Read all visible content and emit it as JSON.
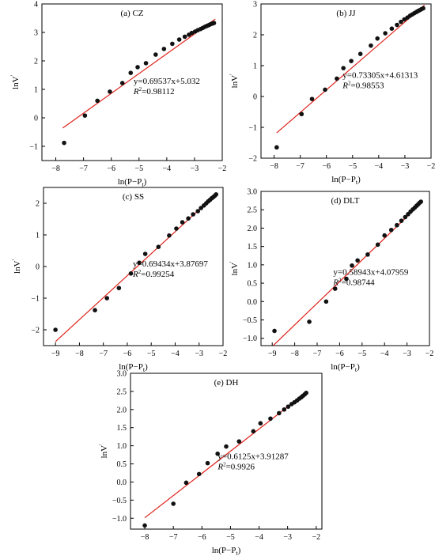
{
  "chart_data": [
    {
      "type": "scatter",
      "panel_label": "(a) CZ",
      "xlabel": "ln(P−P",
      "xlabel_sub": "t",
      "ylabel": "lnV",
      "ylabel_sup": "'",
      "xlim": [
        -8.5,
        -2
      ],
      "ylim": [
        -1.5,
        4
      ],
      "xticks": [
        -8,
        -7,
        -6,
        -5,
        -4,
        -3,
        -2
      ],
      "yticks": [
        -1,
        0,
        1,
        2,
        3,
        4
      ],
      "equation": "y=0.69537x+5.032",
      "r2_label": "R",
      "r2_value": "=0.98112",
      "fit": {
        "slope": 0.69537,
        "intercept": 5.032,
        "x_range": [
          -7.75,
          -2.25
        ]
      },
      "series": [
        {
          "x": [
            -7.7,
            -6.95,
            -6.5,
            -6.05,
            -5.6,
            -5.3,
            -5.05,
            -4.75,
            -4.4,
            -4.1,
            -3.8,
            -3.55,
            -3.35,
            -3.2,
            -3.1,
            -2.98,
            -2.88,
            -2.78,
            -2.7,
            -2.62,
            -2.55,
            -2.48,
            -2.42,
            -2.36,
            -2.3
          ],
          "y": [
            -0.88,
            0.08,
            0.6,
            0.92,
            1.22,
            1.58,
            1.78,
            1.92,
            2.22,
            2.42,
            2.6,
            2.75,
            2.85,
            2.92,
            2.98,
            3.03,
            3.08,
            3.12,
            3.16,
            3.2,
            3.23,
            3.26,
            3.29,
            3.31,
            3.33
          ]
        }
      ]
    },
    {
      "type": "scatter",
      "panel_label": "(b) JJ",
      "xlabel": "ln(P−P",
      "xlabel_sub": "t",
      "ylabel": "lnV",
      "ylabel_sup": "'",
      "xlim": [
        -8.5,
        -2
      ],
      "ylim": [
        -2,
        3
      ],
      "xticks": [
        -8,
        -7,
        -6,
        -5,
        -4,
        -3,
        -2
      ],
      "yticks": [
        -2,
        -1,
        0,
        1,
        2,
        3
      ],
      "equation": "y=0.73305x+4.61313",
      "r2_label": "R",
      "r2_value": "=0.98553",
      "fit": {
        "slope": 0.73305,
        "intercept": 4.61313,
        "x_range": [
          -7.9,
          -2.25
        ]
      },
      "series": [
        {
          "x": [
            -7.9,
            -6.95,
            -6.55,
            -6.05,
            -5.6,
            -5.35,
            -5.05,
            -4.7,
            -4.3,
            -4.05,
            -3.75,
            -3.5,
            -3.3,
            -3.15,
            -3.02,
            -2.9,
            -2.8,
            -2.72,
            -2.64,
            -2.56,
            -2.5,
            -2.43,
            -2.37,
            -2.3
          ],
          "y": [
            -1.65,
            -0.57,
            -0.08,
            0.22,
            0.58,
            0.92,
            1.15,
            1.38,
            1.65,
            1.88,
            2.05,
            2.2,
            2.32,
            2.42,
            2.5,
            2.56,
            2.62,
            2.66,
            2.7,
            2.74,
            2.77,
            2.8,
            2.83,
            2.86
          ]
        }
      ]
    },
    {
      "type": "scatter",
      "panel_label": "(c) SS",
      "xlabel": "ln(P−P",
      "xlabel_sub": "t",
      "ylabel": "lnV",
      "ylabel_sup": "'",
      "xlim": [
        -9.5,
        -2
      ],
      "ylim": [
        -2.5,
        2.5
      ],
      "xticks": [
        -9,
        -8,
        -7,
        -6,
        -5,
        -4,
        -3,
        -2
      ],
      "yticks": [
        -2,
        -1,
        0,
        1,
        2
      ],
      "equation": "y=0.69434x+3.87697",
      "r2_label": "R",
      "r2_value": "=0.99254",
      "fit": {
        "slope": 0.69434,
        "intercept": 3.87697,
        "x_range": [
          -9.0,
          -2.25
        ]
      },
      "series": [
        {
          "x": [
            -9.0,
            -7.35,
            -6.85,
            -6.35,
            -5.85,
            -5.5,
            -5.25,
            -4.7,
            -4.25,
            -3.95,
            -3.7,
            -3.45,
            -3.25,
            -3.05,
            -2.92,
            -2.8,
            -2.7,
            -2.62,
            -2.54,
            -2.47,
            -2.4,
            -2.34,
            -2.29
          ],
          "y": [
            -2.0,
            -1.38,
            -1.0,
            -0.68,
            -0.22,
            0.12,
            0.4,
            0.62,
            0.98,
            1.2,
            1.4,
            1.52,
            1.65,
            1.75,
            1.85,
            1.93,
            2.0,
            2.06,
            2.11,
            2.16,
            2.2,
            2.24,
            2.28
          ]
        }
      ]
    },
    {
      "type": "scatter",
      "panel_label": "(d) DLT",
      "xlabel": "ln(P−P",
      "xlabel_sub": "t",
      "ylabel": "lnV",
      "ylabel_sup": "'",
      "xlim": [
        -9.5,
        -2
      ],
      "ylim": [
        -1.2,
        3.0
      ],
      "xticks": [
        -9,
        -8,
        -7,
        -6,
        -5,
        -4,
        -3,
        -2
      ],
      "yticks": [
        -1.0,
        -0.5,
        0.0,
        0.5,
        1.0,
        1.5,
        2.0,
        2.5,
        3.0
      ],
      "ytick_labels": [
        "-1.0",
        "-0.5",
        "0.0",
        "0.5",
        "1.0",
        "1.5",
        "2.0",
        "2.5",
        "3.0"
      ],
      "equation": "y=0.58943x+4.07959",
      "r2_label": "R",
      "r2_value": "=0.98744",
      "fit": {
        "slope": 0.58943,
        "intercept": 4.07959,
        "x_range": [
          -8.95,
          -2.35
        ]
      },
      "series": [
        {
          "x": [
            -8.9,
            -7.35,
            -6.6,
            -6.2,
            -5.7,
            -5.45,
            -5.2,
            -4.75,
            -4.3,
            -4.0,
            -3.7,
            -3.45,
            -3.25,
            -3.08,
            -2.95,
            -2.84,
            -2.74,
            -2.65,
            -2.57,
            -2.5,
            -2.44,
            -2.38
          ],
          "y": [
            -0.8,
            -0.55,
            0.0,
            0.35,
            0.62,
            0.98,
            1.12,
            1.28,
            1.55,
            1.8,
            1.95,
            2.08,
            2.2,
            2.3,
            2.38,
            2.45,
            2.51,
            2.56,
            2.61,
            2.65,
            2.69,
            2.72
          ]
        }
      ]
    },
    {
      "type": "scatter",
      "panel_label": "(e) DH",
      "xlabel": "ln(P−P",
      "xlabel_sub": "t",
      "ylabel": "lnV",
      "ylabel_sup": "'",
      "xlim": [
        -8.5,
        -1.8
      ],
      "ylim": [
        -1.3,
        3.0
      ],
      "xticks": [
        -8,
        -7,
        -6,
        -5,
        -4,
        -3,
        -2
      ],
      "yticks": [
        -1.0,
        -0.5,
        0.0,
        0.5,
        1.0,
        1.5,
        2.0,
        2.5,
        3.0
      ],
      "ytick_labels": [
        "-1.0",
        "-0.5",
        "0.0",
        "0.5",
        "1.0",
        "1.5",
        "2.0",
        "2.5",
        "3.0"
      ],
      "equation": "y=0.6125x+3.91287",
      "r2_label": "R",
      "r2_value": "=0.9926",
      "fit": {
        "slope": 0.6125,
        "intercept": 3.91287,
        "x_range": [
          -8.0,
          -2.35
        ]
      },
      "series": [
        {
          "x": [
            -8.0,
            -7.0,
            -6.55,
            -6.1,
            -5.8,
            -5.45,
            -5.15,
            -4.7,
            -4.2,
            -3.95,
            -3.6,
            -3.3,
            -3.12,
            -2.98,
            -2.86,
            -2.76,
            -2.67,
            -2.59,
            -2.52,
            -2.46,
            -2.4,
            -2.35
          ],
          "y": [
            -1.2,
            -0.6,
            -0.02,
            0.22,
            0.52,
            0.78,
            0.98,
            1.12,
            1.4,
            1.62,
            1.75,
            1.9,
            2.0,
            2.08,
            2.15,
            2.2,
            2.25,
            2.3,
            2.34,
            2.38,
            2.42,
            2.46
          ]
        }
      ]
    }
  ]
}
